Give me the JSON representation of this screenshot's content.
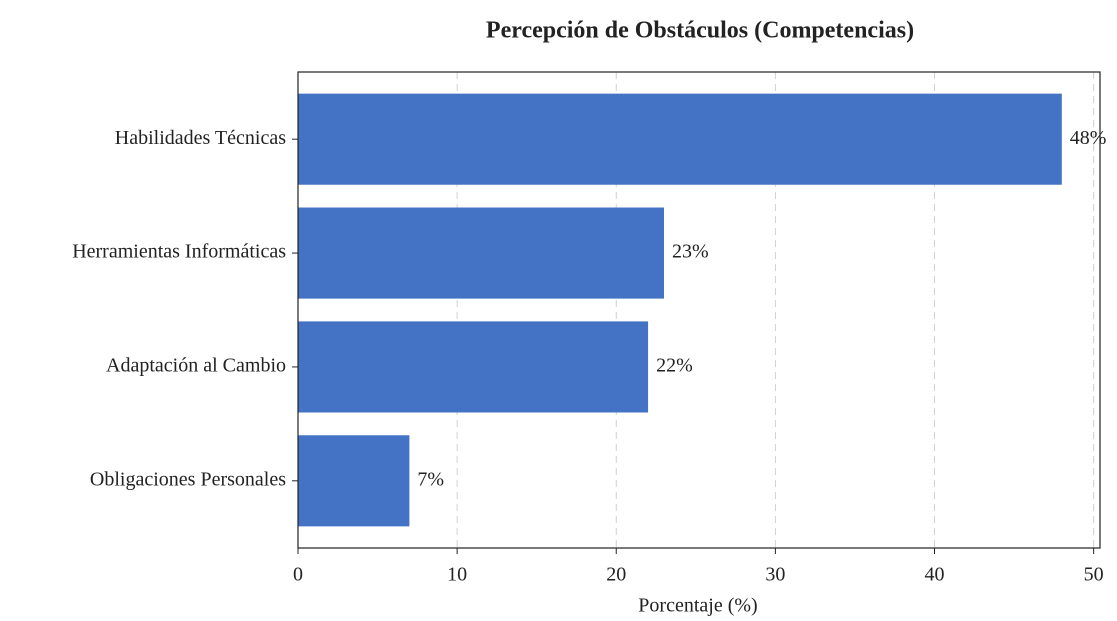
{
  "chart_data": {
    "type": "barh",
    "title": "Percepción de Obstáculos (Competencias)",
    "xlabel": "Porcentaje (%)",
    "categories": [
      "Habilidades Técnicas",
      "Herramientas Informáticas",
      "Adaptación al Cambio",
      "Obligaciones Personales"
    ],
    "values": [
      48,
      23,
      22,
      7
    ],
    "value_labels": [
      "48%",
      "23%",
      "22%",
      "7%"
    ],
    "color": "#4472c4",
    "xlim": [
      0,
      50.4
    ],
    "xticks": [
      0,
      10,
      20,
      30,
      40,
      50
    ],
    "grid": true
  }
}
